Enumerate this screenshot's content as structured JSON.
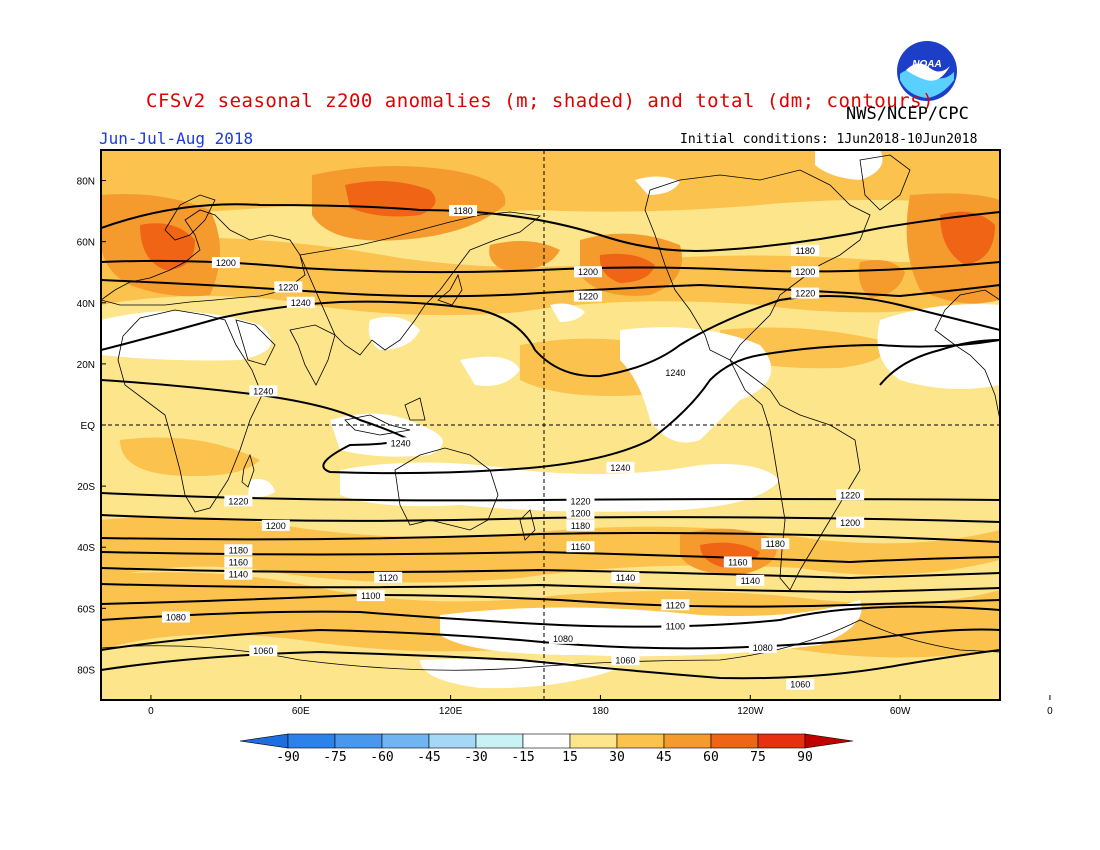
{
  "header": {
    "title": "CFSv2 seasonal z200 anomalies (m; shaded) and total (dm; contours)",
    "agency": "NWS/NCEP/CPC",
    "season": "Jun-Jul-Aug 2018",
    "initial_conditions": "Initial conditions: 1Jun2018-10Jun2018",
    "logo_text": "NOAA"
  },
  "map": {
    "lat_labels": [
      "80N",
      "60N",
      "40N",
      "20N",
      "EQ",
      "20S",
      "40S",
      "60S",
      "80S"
    ],
    "lon_labels": [
      "0",
      "60E",
      "120E",
      "180",
      "120W",
      "60W",
      "0"
    ],
    "contour_labels": [
      {
        "text": "1180",
        "lon": 125,
        "lat": 70
      },
      {
        "text": "1200",
        "lon": 30,
        "lat": 53
      },
      {
        "text": "1220",
        "lon": 55,
        "lat": 45
      },
      {
        "text": "1240",
        "lon": 60,
        "lat": 40
      },
      {
        "text": "1200",
        "lon": 175,
        "lat": 50
      },
      {
        "text": "1220",
        "lon": 175,
        "lat": 42
      },
      {
        "text": "1180",
        "lon": -98,
        "lat": 57
      },
      {
        "text": "1200",
        "lon": -98,
        "lat": 50
      },
      {
        "text": "1220",
        "lon": -98,
        "lat": 43
      },
      {
        "text": "1240",
        "lon": -150,
        "lat": 17
      },
      {
        "text": "1240",
        "lon": 45,
        "lat": 11
      },
      {
        "text": "1240",
        "lon": 100,
        "lat": -6
      },
      {
        "text": "1240",
        "lon": -172,
        "lat": -14
      },
      {
        "text": "1220",
        "lon": 35,
        "lat": -25
      },
      {
        "text": "1220",
        "lon": 172,
        "lat": -25
      },
      {
        "text": "1220",
        "lon": -80,
        "lat": -23
      },
      {
        "text": "1200",
        "lon": 50,
        "lat": -33
      },
      {
        "text": "1200",
        "lon": 172,
        "lat": -29
      },
      {
        "text": "1200",
        "lon": -80,
        "lat": -32
      },
      {
        "text": "1180",
        "lon": 172,
        "lat": -33
      },
      {
        "text": "1180",
        "lon": 35,
        "lat": -41
      },
      {
        "text": "1180",
        "lon": -110,
        "lat": -39
      },
      {
        "text": "1160",
        "lon": 172,
        "lat": -40
      },
      {
        "text": "1160",
        "lon": 35,
        "lat": -45
      },
      {
        "text": "1160",
        "lon": -125,
        "lat": -45
      },
      {
        "text": "1140",
        "lon": 35,
        "lat": -49
      },
      {
        "text": "1140",
        "lon": -170,
        "lat": -50
      },
      {
        "text": "1140",
        "lon": -120,
        "lat": -51
      },
      {
        "text": "1120",
        "lon": 95,
        "lat": -50
      },
      {
        "text": "1120",
        "lon": -150,
        "lat": -59
      },
      {
        "text": "1100",
        "lon": 88,
        "lat": -56
      },
      {
        "text": "1100",
        "lon": -150,
        "lat": -66
      },
      {
        "text": "1080",
        "lon": 10,
        "lat": -63
      },
      {
        "text": "1080",
        "lon": 165,
        "lat": -70
      },
      {
        "text": "1080",
        "lon": -115,
        "lat": -73
      },
      {
        "text": "1060",
        "lon": 45,
        "lat": -74
      },
      {
        "text": "1060",
        "lon": -170,
        "lat": -77
      },
      {
        "text": "1060",
        "lon": -100,
        "lat": -85
      }
    ]
  },
  "colorbar": {
    "labels": [
      "-90",
      "-75",
      "-60",
      "-45",
      "-30",
      "-15",
      "15",
      "30",
      "45",
      "60",
      "75",
      "90"
    ],
    "colors": [
      "#1e6ee0",
      "#2d82ea",
      "#4a98ee",
      "#70b4f2",
      "#a4d8f6",
      "#c8f2f4",
      "#ffffff",
      "#fde58c",
      "#fbc24e",
      "#f59b2e",
      "#f06415",
      "#e83010",
      "#c00000"
    ]
  },
  "anomaly_colors": {
    "light": "#fde58c",
    "moderate": "#fbc24e",
    "strong": "#f59b2e",
    "very_strong": "#f06415",
    "neutral": "#ffffff"
  }
}
